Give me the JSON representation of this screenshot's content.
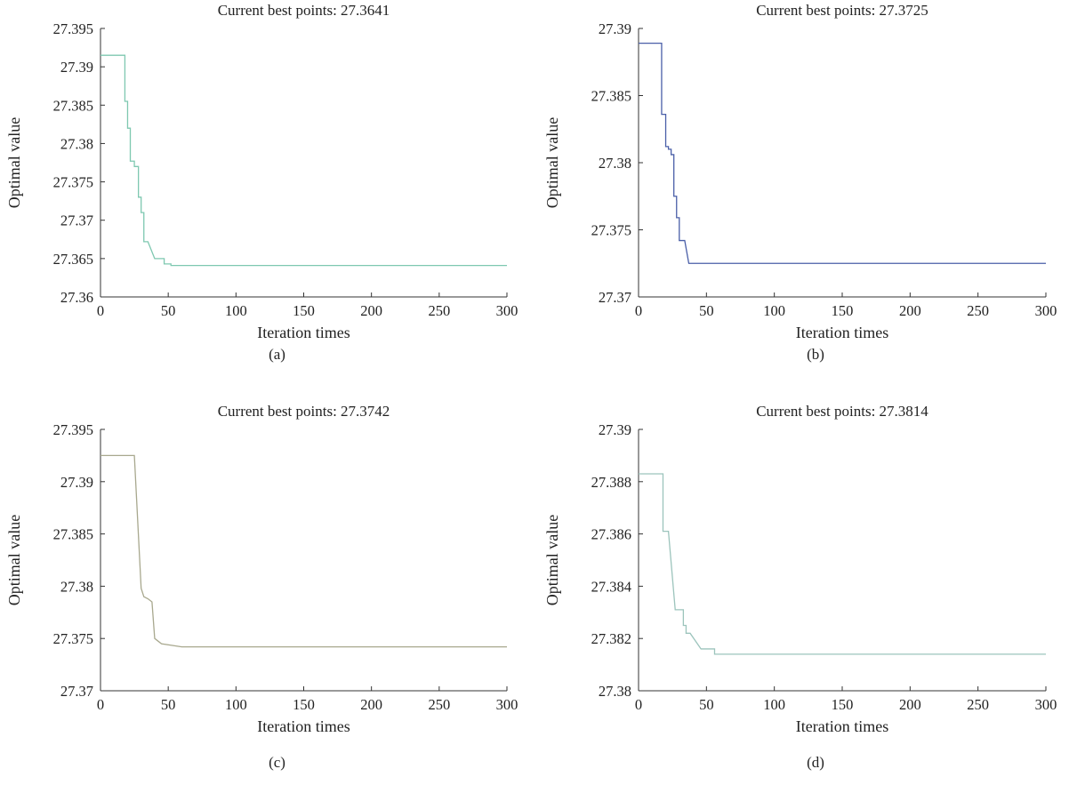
{
  "chart_data": [
    {
      "type": "line",
      "panel": "a",
      "caption": "(a)",
      "title": "Current best points: 27.3641",
      "xlabel": "Iteration times",
      "ylabel": "Optimal value",
      "xlim": [
        0,
        300
      ],
      "ylim": [
        27.36,
        27.395
      ],
      "xticks": [
        "0",
        "50",
        "100",
        "150",
        "200",
        "250",
        "300"
      ],
      "yticks": [
        "27.36",
        "27.365",
        "27.37",
        "27.375",
        "27.38",
        "27.385",
        "27.39",
        "27.395"
      ],
      "color": "#7ec8b0",
      "series": [
        {
          "x": [
            0,
            18,
            18,
            20,
            20,
            22,
            22,
            25,
            25,
            28,
            28,
            30,
            30,
            32,
            32,
            35,
            35,
            40,
            40,
            47,
            47,
            52,
            52,
            60,
            60,
            300
          ],
          "y": [
            27.3915,
            27.3915,
            27.3855,
            27.3855,
            27.382,
            27.382,
            27.3777,
            27.3777,
            27.377,
            27.377,
            27.373,
            27.373,
            27.371,
            27.371,
            27.3672,
            27.3672,
            27.3672,
            27.365,
            27.365,
            27.365,
            27.3643,
            27.3643,
            27.3641,
            27.3641,
            27.3641,
            27.3641
          ]
        }
      ]
    },
    {
      "type": "line",
      "panel": "b",
      "caption": "(b)",
      "title": "Current best points: 27.3725",
      "xlabel": "Iteration times",
      "ylabel": "Optimal value",
      "xlim": [
        0,
        300
      ],
      "ylim": [
        27.37,
        27.39
      ],
      "xticks": [
        "0",
        "50",
        "100",
        "150",
        "200",
        "250",
        "300"
      ],
      "yticks": [
        "27.37",
        "27.375",
        "27.38",
        "27.385",
        "27.39"
      ],
      "color": "#4a5fa8",
      "series": [
        {
          "x": [
            0,
            17,
            17,
            20,
            20,
            22,
            22,
            24,
            24,
            26,
            26,
            28,
            28,
            30,
            30,
            34,
            34,
            37,
            37,
            300
          ],
          "y": [
            27.3889,
            27.3889,
            27.3836,
            27.3836,
            27.3812,
            27.3812,
            27.381,
            27.381,
            27.3806,
            27.3806,
            27.3775,
            27.3775,
            27.3759,
            27.3759,
            27.3742,
            27.3742,
            27.3742,
            27.3725,
            27.3725,
            27.3725
          ]
        }
      ]
    },
    {
      "type": "line",
      "panel": "c",
      "caption": "(c)",
      "title": "Current best points: 27.3742",
      "xlabel": "Iteration times",
      "ylabel": "Optimal value",
      "xlim": [
        0,
        300
      ],
      "ylim": [
        27.37,
        27.395
      ],
      "xticks": [
        "0",
        "50",
        "100",
        "150",
        "200",
        "250",
        "300"
      ],
      "yticks": [
        "27.37",
        "27.375",
        "27.38",
        "27.385",
        "27.39",
        "27.395"
      ],
      "color": "#a8a88e",
      "series": [
        {
          "x": [
            0,
            25,
            25,
            30,
            30,
            32,
            32,
            35,
            35,
            38,
            38,
            40,
            40,
            42,
            42,
            45,
            45,
            60,
            60,
            300
          ],
          "y": [
            27.3925,
            27.3925,
            27.3925,
            27.3798,
            27.3798,
            27.379,
            27.379,
            27.3788,
            27.3788,
            27.3785,
            27.3785,
            27.375,
            27.375,
            27.3748,
            27.3748,
            27.3745,
            27.3745,
            27.3742,
            27.3742,
            27.3742
          ]
        }
      ]
    },
    {
      "type": "line",
      "panel": "d",
      "caption": "(d)",
      "title": "Current best points: 27.3814",
      "xlabel": "Iteration times",
      "ylabel": "Optimal value",
      "xlim": [
        0,
        300
      ],
      "ylim": [
        27.38,
        27.39
      ],
      "xticks": [
        "0",
        "50",
        "100",
        "150",
        "200",
        "250",
        "300"
      ],
      "yticks": [
        "27.38",
        "27.382",
        "27.384",
        "27.386",
        "27.388",
        "27.39"
      ],
      "color": "#9cc4bc",
      "series": [
        {
          "x": [
            0,
            18,
            18,
            22,
            22,
            27,
            27,
            33,
            33,
            35,
            35,
            38,
            38,
            46,
            46,
            56,
            56,
            60,
            60,
            300
          ],
          "y": [
            27.3883,
            27.3883,
            27.3861,
            27.3861,
            27.3861,
            27.3831,
            27.3831,
            27.3831,
            27.3825,
            27.3825,
            27.3822,
            27.3822,
            27.3822,
            27.3816,
            27.3816,
            27.3816,
            27.3814,
            27.3814,
            27.3814,
            27.3814
          ]
        }
      ]
    }
  ]
}
